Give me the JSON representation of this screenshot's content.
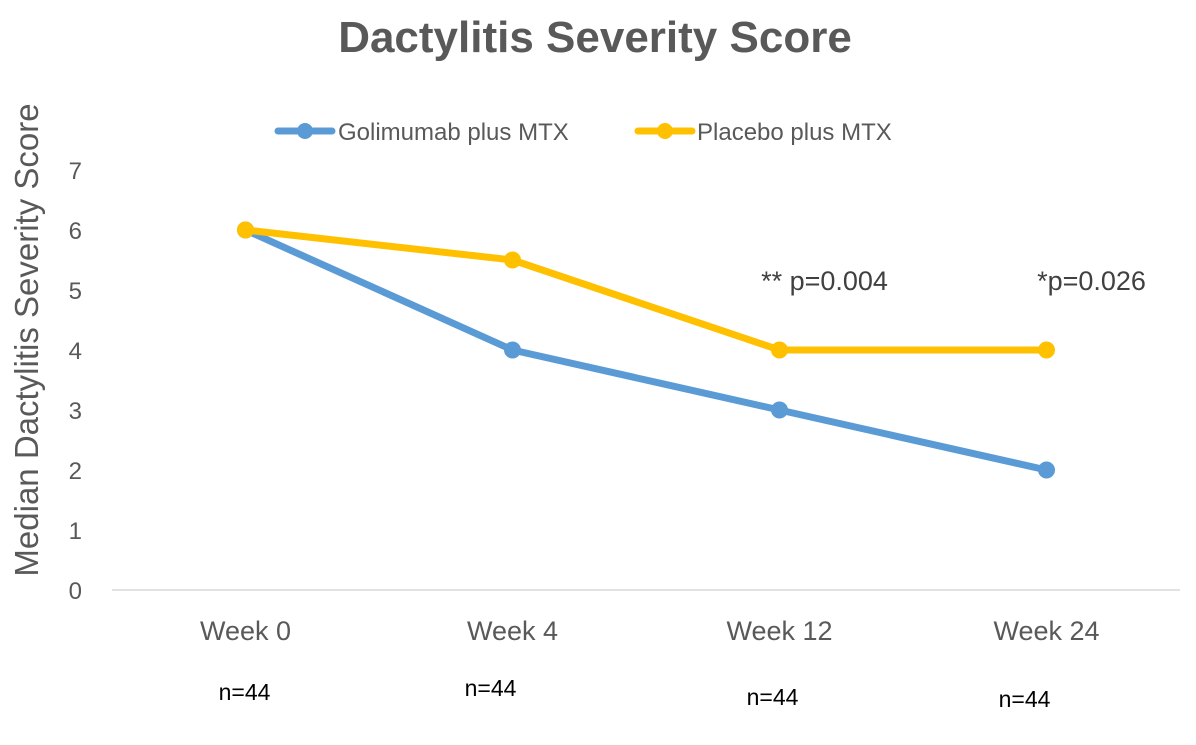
{
  "chart_data": {
    "type": "line",
    "title": "Dactylitis Severity Score",
    "xlabel": "",
    "ylabel": "Median Dactylitis Severity Score",
    "categories": [
      "Week 0",
      "Week 4",
      "Week 12",
      "Week 24"
    ],
    "series": [
      {
        "name": "Golimumab plus MTX",
        "color": "#5b9bd5",
        "values": [
          6,
          4,
          3,
          2
        ]
      },
      {
        "name": "Placebo plus MTX",
        "color": "#ffc000",
        "values": [
          6,
          5.5,
          4,
          4
        ]
      }
    ],
    "ylim": [
      0,
      7
    ],
    "yticks": [
      0,
      1,
      2,
      3,
      4,
      5,
      6,
      7
    ],
    "grid": false,
    "legend": "top",
    "annotations": [
      {
        "text": "** p=0.004",
        "category": "Week 12"
      },
      {
        "text": "*p=0.026",
        "category": "Week 24"
      }
    ],
    "sample_sizes": [
      "n=44",
      "n=44",
      "n=44",
      "n=44"
    ]
  }
}
